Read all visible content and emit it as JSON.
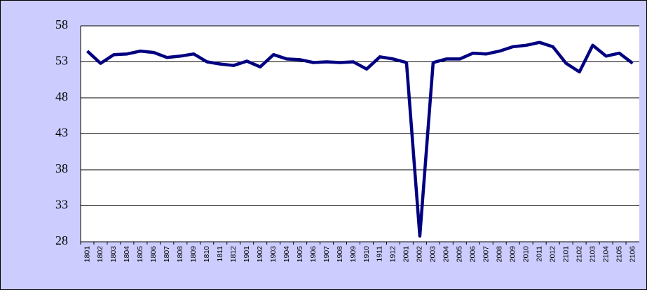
{
  "chart_data": {
    "type": "line",
    "categories": [
      "1801",
      "1802",
      "1803",
      "1804",
      "1805",
      "1806",
      "1807",
      "1808",
      "1809",
      "1810",
      "1811",
      "1812",
      "1901",
      "1902",
      "1903",
      "1904",
      "1905",
      "1906",
      "1907",
      "1908",
      "1909",
      "1910",
      "1911",
      "1912",
      "2001",
      "2002",
      "2003",
      "2004",
      "2005",
      "2006",
      "2007",
      "2008",
      "2009",
      "2010",
      "2011",
      "2012",
      "2101",
      "2102",
      "2103",
      "2104",
      "2105",
      "2106"
    ],
    "values": [
      54.5,
      52.8,
      54.0,
      54.1,
      54.5,
      54.3,
      53.6,
      53.8,
      54.1,
      53.0,
      52.7,
      52.5,
      53.1,
      52.3,
      54.0,
      53.4,
      53.3,
      52.9,
      53.0,
      52.9,
      53.0,
      52.0,
      53.7,
      53.4,
      52.9,
      28.8,
      52.9,
      53.4,
      53.4,
      54.2,
      54.1,
      54.5,
      55.1,
      55.3,
      55.7,
      55.1,
      52.8,
      51.6,
      55.3,
      53.8,
      54.2,
      52.8
    ],
    "color": "#000080",
    "ylim": [
      28,
      58
    ],
    "yticks": [
      28,
      33,
      38,
      43,
      48,
      53,
      58
    ],
    "grid": true
  }
}
